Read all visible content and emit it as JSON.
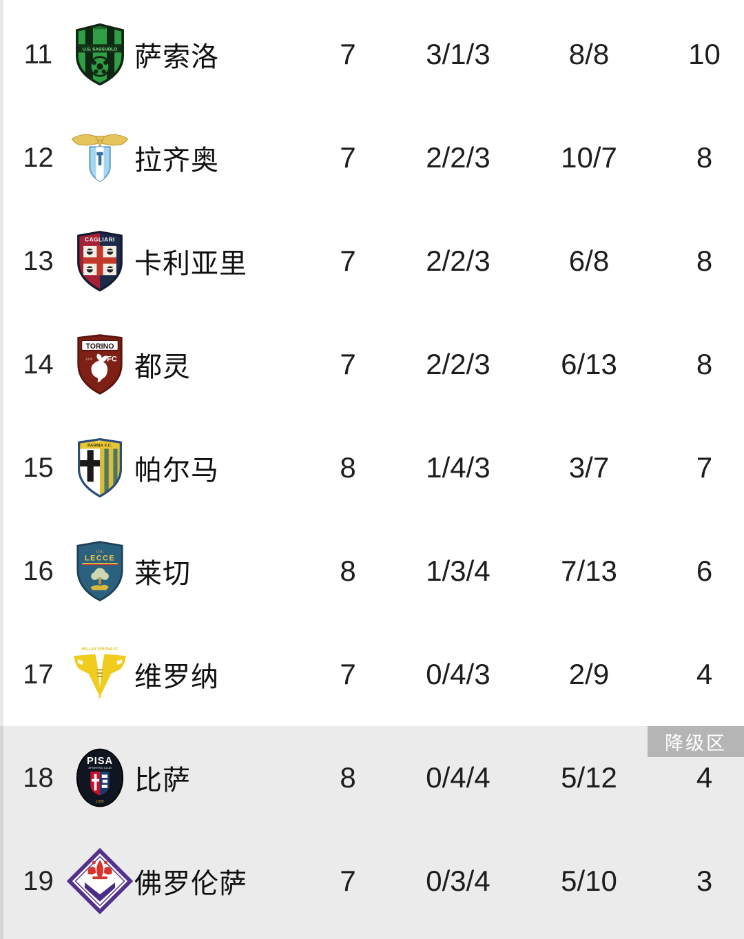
{
  "header": {
    "relegation_badge": "降级区"
  },
  "table": {
    "rows": [
      {
        "rank": "11",
        "team": "萨索洛",
        "badge": "sassuolo",
        "played": "7",
        "wdl": "3/1/3",
        "goals": "8/8",
        "points": "10",
        "zone": "normal"
      },
      {
        "rank": "12",
        "team": "拉齐奥",
        "badge": "lazio",
        "played": "7",
        "wdl": "2/2/3",
        "goals": "10/7",
        "points": "8",
        "zone": "normal"
      },
      {
        "rank": "13",
        "team": "卡利亚里",
        "badge": "cagliari",
        "played": "7",
        "wdl": "2/2/3",
        "goals": "6/8",
        "points": "8",
        "zone": "normal"
      },
      {
        "rank": "14",
        "team": "都灵",
        "badge": "torino",
        "played": "7",
        "wdl": "2/2/3",
        "goals": "6/13",
        "points": "8",
        "zone": "normal"
      },
      {
        "rank": "15",
        "team": "帕尔马",
        "badge": "parma",
        "played": "8",
        "wdl": "1/4/3",
        "goals": "3/7",
        "points": "7",
        "zone": "normal"
      },
      {
        "rank": "16",
        "team": "莱切",
        "badge": "lecce",
        "played": "8",
        "wdl": "1/3/4",
        "goals": "7/13",
        "points": "6",
        "zone": "normal"
      },
      {
        "rank": "17",
        "team": "维罗纳",
        "badge": "verona",
        "played": "7",
        "wdl": "0/4/3",
        "goals": "2/9",
        "points": "4",
        "zone": "normal"
      },
      {
        "rank": "18",
        "team": "比萨",
        "badge": "pisa",
        "played": "8",
        "wdl": "0/4/4",
        "goals": "5/12",
        "points": "4",
        "zone": "relegation"
      },
      {
        "rank": "19",
        "team": "佛罗伦萨",
        "badge": "fiorentina",
        "played": "7",
        "wdl": "0/3/4",
        "goals": "5/10",
        "points": "3",
        "zone": "relegation"
      }
    ]
  },
  "badges": {
    "sassuolo": {
      "lettering": "U.S. SASSUOLO"
    },
    "lazio": {
      "lettering": ""
    },
    "cagliari": {
      "lettering": "CAGLIARI"
    },
    "torino": {
      "lettering": "TORINO",
      "sub": "FC"
    },
    "parma": {
      "lettering": "PARMA F.C."
    },
    "lecce": {
      "lettering": "LECCE",
      "sub": "U.S."
    },
    "verona": {
      "lettering": "HELLAS VERONA FC"
    },
    "pisa": {
      "lettering": "PISA"
    },
    "fiorentina": {
      "lettering": ""
    }
  },
  "colors": {
    "page_bg": "#ffffff",
    "relegation_section_bg": "#ebebeb",
    "relegation_badge_bg": "#b5b5b5",
    "relegation_badge_text": "#ffffff",
    "text": "#1d1d1d"
  }
}
